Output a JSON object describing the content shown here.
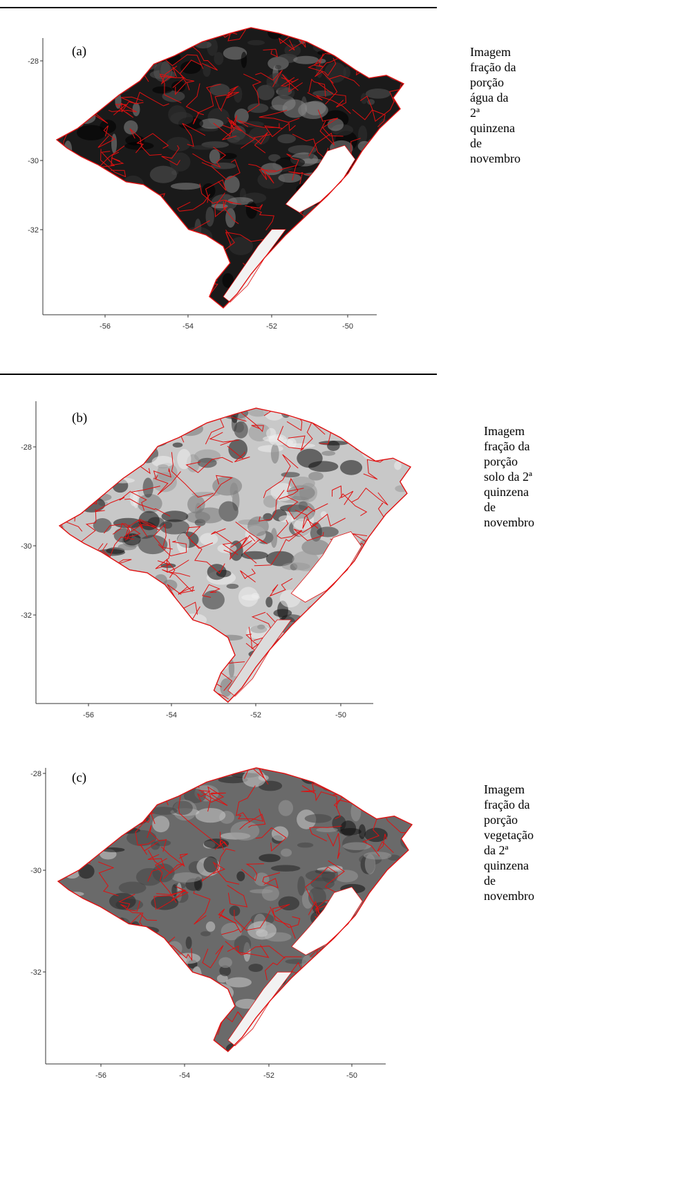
{
  "panels": [
    {
      "label": "(a)",
      "caption": "Imagem fração da\nporção água da 2ª\nquinzena de novembro",
      "y_ticks": [
        "-28",
        "-30",
        "-32"
      ],
      "x_ticks": [
        "-56",
        "-54",
        "-52",
        "-50"
      ],
      "tone": "dark"
    },
    {
      "label": "(b)",
      "caption": "Imagem fração da\nporção solo da 2ª\nquinzena de novembro",
      "y_ticks": [
        "-28",
        "-30",
        "-32"
      ],
      "x_ticks": [
        "-56",
        "-54",
        "-52",
        "-50"
      ],
      "tone": "light"
    },
    {
      "label": "(c)",
      "caption": "Imagem fração da\nporção vegetação da 2ª\nquinzena de novembro",
      "y_ticks": [
        "-28",
        "-30",
        "-32"
      ],
      "x_ticks": [
        "-56",
        "-54",
        "-52",
        "-50"
      ],
      "tone": "mid"
    }
  ],
  "colors": {
    "boundary": "#e01010",
    "dark_fill": "#1a1a1a",
    "light_fill": "#c8c8c8",
    "mid_fill": "#6a6a6a",
    "lagoon": "#ffffff",
    "axis": "#333333"
  }
}
